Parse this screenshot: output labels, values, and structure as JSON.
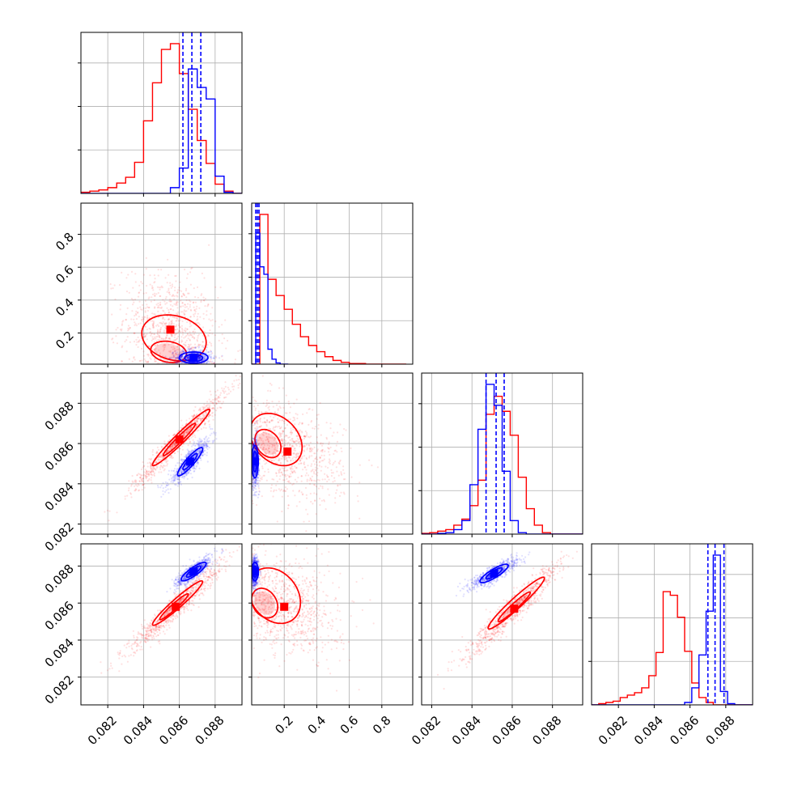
{
  "chart_data": {
    "type": "corner",
    "colors": {
      "red": "#ff0000",
      "blue": "#0000ff"
    },
    "parameters": [
      {
        "index": 0,
        "range": [
          0.0805,
          0.0895
        ],
        "ticks": [
          0.082,
          0.084,
          0.086,
          0.088
        ],
        "tick_labels": [
          "0.082",
          "0.084",
          "0.086",
          "0.088"
        ]
      },
      {
        "index": 1,
        "range": [
          0.0,
          0.99
        ],
        "ticks": [
          0.2,
          0.4,
          0.6,
          0.8
        ],
        "tick_labels": [
          "0.2",
          "0.4",
          "0.6",
          "0.8"
        ],
        "y_range": [
          0.01,
          0.99
        ],
        "y_tick_labels": [
          "0.2",
          "0.4",
          "0.6",
          "0.8"
        ]
      },
      {
        "index": 2,
        "range": [
          0.0815,
          0.0895
        ],
        "ticks": [
          0.082,
          0.084,
          0.086,
          0.088
        ],
        "tick_labels": [
          "0.082",
          "0.084",
          "0.086",
          "0.088"
        ]
      },
      {
        "index": 3,
        "range": [
          0.0805,
          0.0895
        ],
        "ticks": [
          0.082,
          0.084,
          0.086,
          0.088
        ],
        "tick_labels": [
          "0.082",
          "0.084",
          "0.086",
          "0.088"
        ],
        "y_range": [
          0.0805,
          0.0892
        ]
      }
    ],
    "bottom_tick_labels": [
      [
        "0.082",
        "0.084",
        "0.086",
        "0.088"
      ],
      [
        "0.2",
        "0.4",
        "0.6",
        "0.8"
      ],
      [
        "0.082",
        "0.084",
        "0.086",
        "0.088"
      ],
      [
        "0.082",
        "0.084",
        "0.086",
        "0.088"
      ]
    ],
    "left_tick_labels": [
      [],
      [
        "0.2",
        "0.4",
        "0.6",
        "0.8"
      ],
      [
        "0.082",
        "0.084",
        "0.086",
        "0.088"
      ],
      [
        "0.082",
        "0.084",
        "0.086",
        "0.088"
      ]
    ],
    "histograms": [
      {
        "param": 0,
        "red": {
          "edges_start": 0.0805,
          "bin_width": 0.0005,
          "counts": [
            1,
            2,
            3,
            5,
            9,
            14,
            27,
            63,
            96,
            125,
            130,
            104,
            73,
            46,
            26,
            8,
            2,
            0
          ]
        },
        "blue": {
          "edges_start": 0.0805,
          "bin_width": 0.0005,
          "counts": [
            0,
            0,
            0,
            0,
            0,
            0,
            0,
            0,
            0,
            0,
            5,
            22,
            108,
            92,
            82,
            15,
            1,
            0
          ]
        },
        "blue_quantiles": [
          0.0862,
          0.0867,
          0.0872
        ]
      },
      {
        "param": 1,
        "red": {
          "edges_start": 0.0,
          "bin_width": 0.05,
          "counts": [
            0,
            120,
            68,
            55,
            44,
            32,
            22,
            15,
            10,
            6,
            3,
            1.5,
            0.5,
            0.5,
            0,
            0,
            0,
            0,
            0
          ]
        },
        "blue": {
          "edges_start": 0.0,
          "bin_width": 0.025,
          "counts": [
            0,
            105,
            78,
            72,
            12,
            4,
            1,
            0,
            0
          ]
        },
        "blue_quantiles": [
          0.025,
          0.035,
          0.045
        ]
      },
      {
        "param": 2,
        "red": {
          "edges_start": 0.0815,
          "bin_width": 0.0004,
          "counts": [
            0.5,
            1,
            2,
            3,
            6,
            10,
            19,
            36,
            80,
            92,
            82,
            66,
            38,
            17,
            6,
            1,
            0,
            0,
            0,
            0
          ]
        },
        "blue": {
          "edges_start": 0.0815,
          "bin_width": 0.0004,
          "counts": [
            0,
            0,
            0.5,
            1,
            3,
            9,
            33,
            70,
            100,
            86,
            42,
            9,
            1,
            0,
            0,
            0,
            0,
            0,
            0,
            0
          ]
        },
        "blue_quantiles": [
          0.0847,
          0.0852,
          0.0856
        ]
      },
      {
        "param": 3,
        "red": {
          "edges_start": 0.0805,
          "bin_width": 0.0004,
          "counts": [
            0,
            1,
            2,
            3,
            6,
            8,
            10,
            14,
            24,
            43,
            93,
            90,
            72,
            44,
            18,
            6,
            2,
            0,
            0,
            0,
            0,
            0,
            0
          ]
        },
        "blue": {
          "edges_start": 0.0805,
          "bin_width": 0.0004,
          "counts": [
            0,
            0,
            0,
            0,
            0,
            0,
            0,
            0,
            0,
            0,
            0,
            0,
            0,
            2,
            14,
            41,
            77,
            123,
            11,
            1,
            0,
            0,
            0
          ]
        },
        "blue_quantiles": [
          0.087,
          0.0874,
          0.0879
        ]
      }
    ],
    "pairs": [
      {
        "row": 1,
        "col": 0,
        "red": {
          "mean": [
            0.0855,
            0.22
          ],
          "sd": [
            0.0013,
            0.17
          ],
          "rho": -0.2,
          "contours": [
            {
              "sx": 0.001,
              "sy": 0.065,
              "cx": 0.0854,
              "cy": 0.085
            },
            {
              "sx": 0.0018,
              "sy": 0.14,
              "cx": 0.0857,
              "cy": 0.17
            }
          ]
        },
        "blue": {
          "mean": [
            0.0868,
            0.05
          ],
          "sd": [
            0.0005,
            0.025
          ],
          "rho": 0.0,
          "contours": [
            {
              "sx": 0.0005,
              "sy": 0.022,
              "cx": 0.0868,
              "cy": 0.048
            },
            {
              "sx": 0.0008,
              "sy": 0.034,
              "cx": 0.0868,
              "cy": 0.05
            }
          ]
        }
      },
      {
        "row": 2,
        "col": 0,
        "red": {
          "mean": [
            0.086,
            0.0862
          ],
          "sd": [
            0.0013,
            0.0012
          ],
          "rho": 0.97,
          "contours": [
            {
              "sx": 0.0009,
              "sy": 0.0008,
              "cx": 0.086,
              "cy": 0.0862
            },
            {
              "sx": 0.0016,
              "sy": 0.0014,
              "cx": 0.0861,
              "cy": 0.0863
            }
          ]
        },
        "blue": {
          "mean": [
            0.0866,
            0.0851
          ],
          "sd": [
            0.0006,
            0.0006
          ],
          "rho": 0.9,
          "contours": [
            {
              "sx": 0.0004,
              "sy": 0.0004,
              "cx": 0.0866,
              "cy": 0.0851
            },
            {
              "sx": 0.0007,
              "sy": 0.0007,
              "cx": 0.0866,
              "cy": 0.0851
            }
          ]
        }
      },
      {
        "row": 2,
        "col": 1,
        "red": {
          "mean": [
            0.22,
            0.0856
          ],
          "sd": [
            0.17,
            0.0012
          ],
          "rho": -0.3,
          "contours": [
            {
              "sx": 0.08,
              "sy": 0.0007,
              "cx": 0.1,
              "cy": 0.086
            },
            {
              "sx": 0.16,
              "sy": 0.0013,
              "cx": 0.15,
              "cy": 0.0862
            }
          ]
        },
        "blue": {
          "mean": [
            0.02,
            0.0851
          ],
          "sd": [
            0.012,
            0.0006
          ],
          "rho": 0.0,
          "contours": [
            {
              "sx": 0.012,
              "sy": 0.0005,
              "cx": 0.02,
              "cy": 0.0851
            },
            {
              "sx": 0.02,
              "sy": 0.0008,
              "cx": 0.02,
              "cy": 0.0851
            }
          ]
        }
      },
      {
        "row": 3,
        "col": 0,
        "red": {
          "mean": [
            0.0858,
            0.0858
          ],
          "sd": [
            0.0013,
            0.0012
          ],
          "rho": 0.96,
          "contours": [
            {
              "sx": 0.0008,
              "sy": 0.0007,
              "cx": 0.0857,
              "cy": 0.0858
            },
            {
              "sx": 0.0014,
              "sy": 0.0012,
              "cx": 0.0859,
              "cy": 0.086
            }
          ]
        },
        "blue": {
          "mean": [
            0.0868,
            0.0877
          ],
          "sd": [
            0.0005,
            0.0004
          ],
          "rho": 0.85,
          "contours": [
            {
              "sx": 0.0004,
              "sy": 0.0003,
              "cx": 0.0868,
              "cy": 0.0877
            },
            {
              "sx": 0.0007,
              "sy": 0.0005,
              "cx": 0.0868,
              "cy": 0.0877
            }
          ]
        }
      },
      {
        "row": 3,
        "col": 1,
        "red": {
          "mean": [
            0.2,
            0.0858
          ],
          "sd": [
            0.17,
            0.0013
          ],
          "rho": -0.25,
          "contours": [
            {
              "sx": 0.08,
              "sy": 0.0008,
              "cx": 0.08,
              "cy": 0.086
            },
            {
              "sx": 0.16,
              "sy": 0.0015,
              "cx": 0.14,
              "cy": 0.0864
            }
          ]
        },
        "blue": {
          "mean": [
            0.02,
            0.0877
          ],
          "sd": [
            0.012,
            0.0004
          ],
          "rho": 0.0,
          "contours": [
            {
              "sx": 0.012,
              "sy": 0.0003,
              "cx": 0.02,
              "cy": 0.0877
            },
            {
              "sx": 0.02,
              "sy": 0.0005,
              "cx": 0.02,
              "cy": 0.0877
            }
          ]
        }
      },
      {
        "row": 3,
        "col": 2,
        "red": {
          "mean": [
            0.0861,
            0.0857
          ],
          "sd": [
            0.0012,
            0.0013
          ],
          "rho": 0.96,
          "contours": [
            {
              "sx": 0.0008,
              "sy": 0.0008,
              "cx": 0.0861,
              "cy": 0.0858
            },
            {
              "sx": 0.0014,
              "sy": 0.0014,
              "cx": 0.0862,
              "cy": 0.086
            }
          ]
        },
        "blue": {
          "mean": [
            0.0851,
            0.0876
          ],
          "sd": [
            0.0006,
            0.0004
          ],
          "rho": 0.85,
          "contours": [
            {
              "sx": 0.0004,
              "sy": 0.0003,
              "cx": 0.0851,
              "cy": 0.0876
            },
            {
              "sx": 0.0007,
              "sy": 0.0005,
              "cx": 0.0851,
              "cy": 0.0876
            }
          ]
        }
      }
    ],
    "grid": true
  }
}
